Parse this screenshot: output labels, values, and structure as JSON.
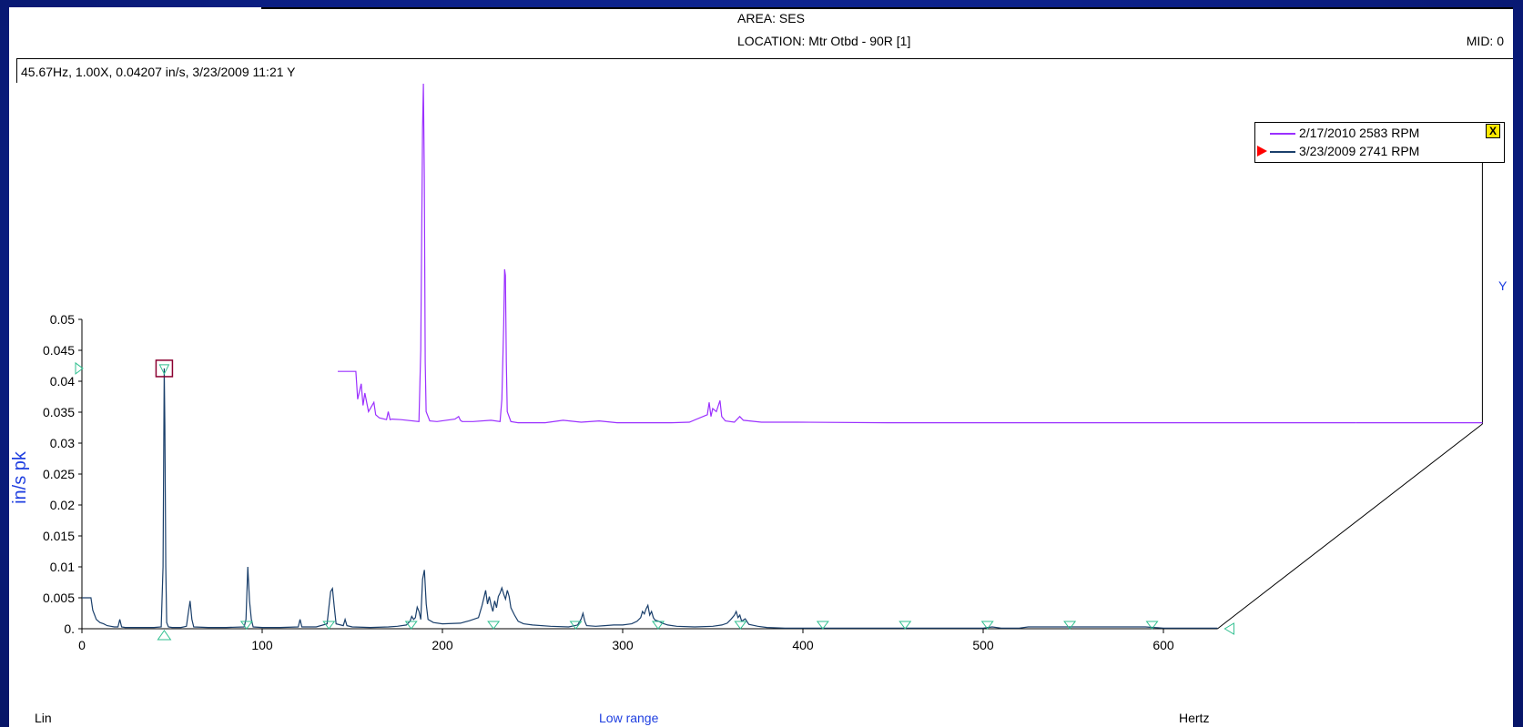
{
  "header": {
    "area": "AREA: SES",
    "location": "LOCATION: Mtr Otbd - 90R [1]",
    "mid": "MID: 0",
    "cursor_readout": "45.67Hz, 1.00X, 0.04207 in/s, 3/23/2009 11:21  Y"
  },
  "footer": {
    "scale_mode": "Lin",
    "range": "Low range",
    "x_unit": "Hertz"
  },
  "z_axis_label": "Y",
  "colors": {
    "series_2010": "#9b30ff",
    "series_2009": "#1a3f6b",
    "fault_markers": "#2fbf8f",
    "axis_title": "#1f3fe0",
    "background": "#0b1f86"
  },
  "chart_data": {
    "type": "line",
    "title": "",
    "xlabel": "Hertz",
    "ylabel": "in/s pk",
    "xlim": [
      0,
      630
    ],
    "ylim": [
      0,
      0.05
    ],
    "x_ticks": [
      "0",
      "100",
      "200",
      "300",
      "400",
      "500",
      "600"
    ],
    "y_ticks": [
      "0.",
      "0.005",
      "0.01",
      "0.015",
      "0.02",
      "0.025",
      "0.03",
      "0.035",
      "0.04",
      "0.045",
      "0.05"
    ],
    "waterfall": true,
    "legend_position": "top-right",
    "legend": [
      {
        "label": "2/17/2010 2583 RPM",
        "color": "#9b30ff"
      },
      {
        "label": "3/23/2009 2741 RPM",
        "color": "#1a3f6b",
        "active": true
      }
    ],
    "series": [
      {
        "name": "3/23/2009 2741 RPM",
        "x": [
          0,
          5,
          6,
          8,
          10,
          12,
          14,
          16,
          18,
          20,
          21,
          22,
          24,
          30,
          40,
          44,
          45,
          45.67,
          46,
          46.5,
          47,
          48,
          50,
          55,
          58,
          59,
          60,
          61,
          62,
          70,
          80,
          90,
          91,
          92,
          93,
          94,
          95,
          100,
          110,
          120,
          121,
          122,
          130,
          136,
          137,
          138,
          139,
          140,
          141,
          145,
          146,
          147,
          150,
          160,
          170,
          175,
          180,
          182,
          183,
          184,
          185,
          186,
          187,
          188,
          189,
          190,
          191,
          192,
          195,
          200,
          210,
          215,
          220,
          222,
          224,
          225,
          226,
          227,
          228,
          229,
          230,
          231,
          232,
          233,
          234,
          235,
          236,
          237,
          238,
          239,
          240,
          242,
          245,
          250,
          260,
          270,
          275,
          277,
          278,
          279,
          280,
          285,
          290,
          295,
          300,
          305,
          308,
          310,
          311,
          312,
          313,
          314,
          315,
          316,
          317,
          318,
          320,
          322,
          325,
          330,
          340,
          350,
          355,
          358,
          360,
          362,
          363,
          364,
          365,
          366,
          368,
          370,
          375,
          380,
          390,
          400,
          405,
          410,
          420,
          440,
          460,
          480,
          500,
          505,
          510,
          520,
          525,
          530,
          540,
          550,
          560,
          570,
          580,
          590,
          600,
          610,
          620,
          630
        ],
        "values": [
          0.005,
          0.005,
          0.003,
          0.0015,
          0.001,
          0.0008,
          0.0005,
          0.0004,
          0.0003,
          0.0003,
          0.0015,
          0.0003,
          0.0002,
          0.0002,
          0.0002,
          0.0003,
          0.01,
          0.04207,
          0.033,
          0.01,
          0.001,
          0.0003,
          0.0002,
          0.0002,
          0.0004,
          0.0025,
          0.0045,
          0.0015,
          0.0003,
          0.0002,
          0.0002,
          0.0003,
          0.0015,
          0.01,
          0.0045,
          0.0015,
          0.0003,
          0.0002,
          0.0002,
          0.0003,
          0.0015,
          0.0003,
          0.0003,
          0.0008,
          0.0035,
          0.006,
          0.0065,
          0.0035,
          0.0008,
          0.0005,
          0.0015,
          0.0005,
          0.0003,
          0.0002,
          0.0003,
          0.0004,
          0.0006,
          0.0012,
          0.002,
          0.0015,
          0.0018,
          0.0035,
          0.0028,
          0.0015,
          0.008,
          0.0095,
          0.004,
          0.0015,
          0.001,
          0.0008,
          0.0009,
          0.0013,
          0.0018,
          0.0038,
          0.0062,
          0.004,
          0.0052,
          0.0038,
          0.0028,
          0.0045,
          0.0034,
          0.0052,
          0.0058,
          0.0066,
          0.0056,
          0.0048,
          0.0062,
          0.0052,
          0.0034,
          0.0028,
          0.0022,
          0.0012,
          0.0008,
          0.0006,
          0.0004,
          0.0003,
          0.0006,
          0.0016,
          0.0025,
          0.0012,
          0.0005,
          0.0004,
          0.0005,
          0.0006,
          0.0006,
          0.0008,
          0.0012,
          0.0018,
          0.0028,
          0.0024,
          0.0032,
          0.0038,
          0.0022,
          0.0028,
          0.0018,
          0.0014,
          0.0012,
          0.0009,
          0.0006,
          0.0004,
          0.0003,
          0.0004,
          0.0006,
          0.0009,
          0.0015,
          0.0022,
          0.0028,
          0.0018,
          0.0022,
          0.0012,
          0.0016,
          0.0007,
          0.0004,
          0.0002,
          0.0001,
          0.0001,
          0.0001,
          0.0001,
          0.0001,
          0.0001,
          0.0001,
          0.0001,
          0.0001,
          0.0003,
          0.0001,
          0.0001,
          0.0003,
          0.0003,
          0.0003,
          0.0003,
          0.0003,
          0.0003,
          0.0003,
          0.0003,
          0.0001,
          0.0001,
          0.0001,
          0.0001
        ]
      },
      {
        "name": "2/17/2010 2583 RPM",
        "x": [
          0,
          5,
          6,
          8,
          9,
          10,
          12,
          15,
          16,
          18,
          22,
          23,
          24,
          25,
          30,
          40,
          41,
          42,
          42.5,
          43,
          43.5,
          44,
          46,
          50,
          60,
          62,
          63,
          64,
          70,
          80,
          85,
          86,
          87,
          87.5,
          88,
          88.5,
          89,
          91,
          95,
          110,
          120,
          130,
          140,
          150,
          180,
          190,
          200,
          201,
          202,
          203,
          205,
          207,
          208,
          210,
          215,
          218,
          220,
          230,
          250,
          300,
          350,
          400,
          420,
          500,
          560
        ],
        "values": [
          0.0085,
          0.0085,
          0.004,
          0.0065,
          0.003,
          0.005,
          0.002,
          0.0035,
          0.0015,
          0.001,
          0.0007,
          0.002,
          0.0007,
          0.0008,
          0.0007,
          0.0004,
          0.012,
          0.048,
          0.055,
          0.04,
          0.01,
          0.002,
          0.0005,
          0.0004,
          0.0008,
          0.0012,
          0.0006,
          0.0004,
          0.0004,
          0.0006,
          0.0004,
          0.004,
          0.016,
          0.025,
          0.024,
          0.01,
          0.002,
          0.0004,
          0.0002,
          0.0002,
          0.0006,
          0.0003,
          0.0005,
          0.0002,
          0.0002,
          0.0003,
          0.0015,
          0.0035,
          0.0012,
          0.0025,
          0.002,
          0.0038,
          0.0012,
          0.0005,
          0.0003,
          0.0012,
          0.0006,
          0.0003,
          0.0003,
          0.0002,
          0.0002,
          0.0002,
          0.0002,
          0.0002,
          0.0002
        ]
      }
    ]
  }
}
